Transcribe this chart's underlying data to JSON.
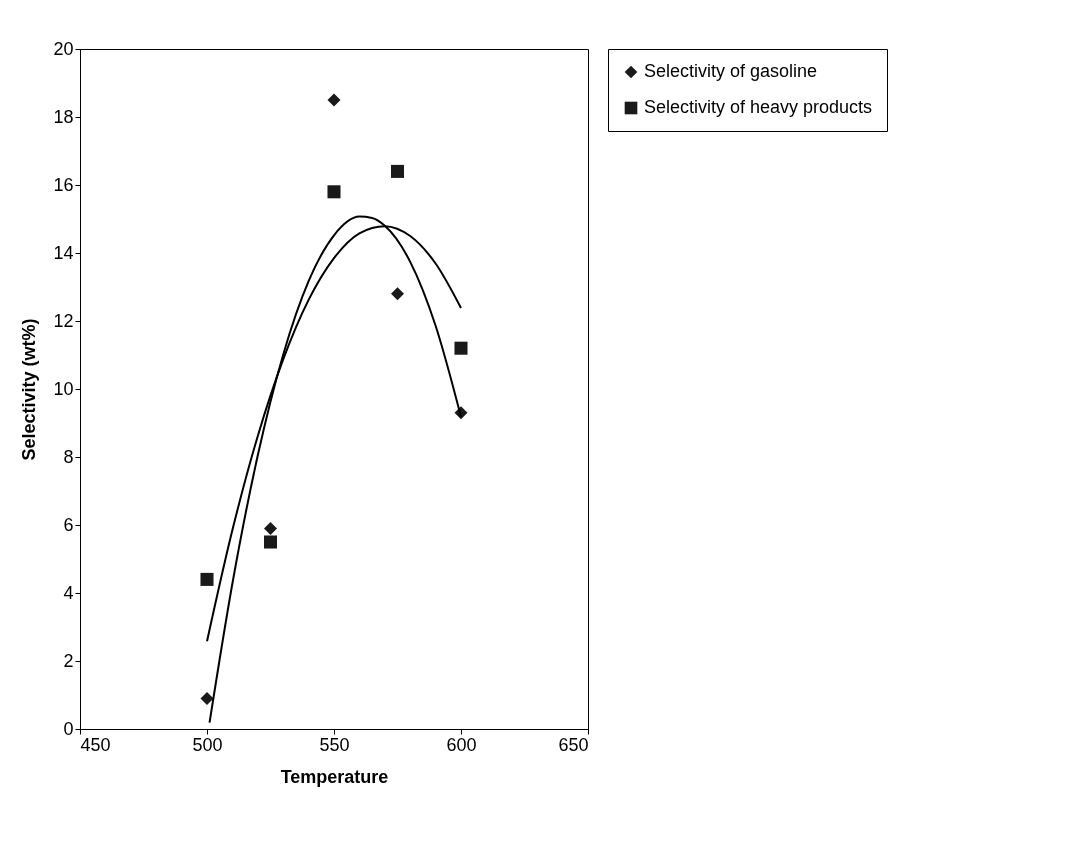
{
  "chart_data": {
    "type": "scatter",
    "xlabel": "Temperature",
    "ylabel": "Selectivity (wt%)",
    "xlim": [
      450,
      650
    ],
    "xticks": [
      450,
      500,
      550,
      600,
      650
    ],
    "ylim": [
      0,
      20
    ],
    "yticks": [
      0,
      2,
      4,
      6,
      8,
      10,
      12,
      14,
      16,
      18,
      20
    ],
    "grid": false,
    "legend": "right",
    "series": [
      {
        "name": "Selectivity of gasoline",
        "color": "#1a1a1a",
        "marker": "diamond",
        "x": [
          500,
          525,
          550,
          575,
          600
        ],
        "values": [
          0.9,
          5.9,
          18.5,
          12.8,
          9.3
        ]
      },
      {
        "name": "Selectivity of heavy products",
        "color": "#1a1a1a",
        "marker": "square",
        "x": [
          500,
          525,
          550,
          575,
          600
        ],
        "values": [
          4.4,
          5.5,
          15.8,
          16.4,
          11.2
        ]
      },
      {
        "type": "line",
        "color": "#000000",
        "x": [
          501,
          510,
          520,
          530,
          540,
          550,
          560,
          565,
          570,
          580,
          590,
          600
        ],
        "values": [
          0.19,
          4.28,
          8.05,
          11.01,
          13.17,
          14.52,
          15.07,
          15.03,
          14.8,
          13.74,
          11.86,
          9.18
        ]
      },
      {
        "type": "line",
        "color": "#000000",
        "x": [
          500,
          510,
          520,
          530,
          540,
          550,
          560,
          570,
          580,
          590,
          600
        ],
        "values": [
          2.58,
          5.85,
          8.62,
          10.87,
          12.62,
          13.85,
          14.58,
          14.79,
          14.5,
          13.69,
          12.38
        ]
      }
    ]
  }
}
